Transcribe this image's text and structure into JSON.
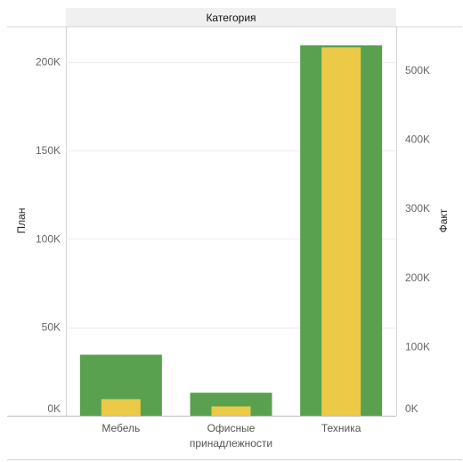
{
  "header": {
    "title": "Категория"
  },
  "chart_data": {
    "type": "bar",
    "categories": [
      "Мебель",
      "Офисные принадлежности",
      "Техника"
    ],
    "category_label_lines": [
      [
        "Мебель"
      ],
      [
        "Офисные",
        "принадлежности"
      ],
      [
        "Техника"
      ]
    ],
    "series": [
      {
        "name": "План",
        "axis": "left",
        "values": [
          34500,
          13000,
          209500
        ],
        "color": "#59A14F"
      },
      {
        "name": "Факт",
        "axis": "right",
        "values": [
          24000,
          13500,
          533000
        ],
        "color": "#EDC948"
      }
    ],
    "left_axis": {
      "label": "План",
      "ylim": [
        0,
        220000
      ],
      "ticks": [
        0,
        50000,
        100000,
        150000,
        200000
      ],
      "tick_labels": [
        "0K",
        "50K",
        "100K",
        "150K",
        "200K"
      ]
    },
    "right_axis": {
      "label": "Факт",
      "ylim": [
        0,
        563000
      ],
      "ticks": [
        0,
        100000,
        200000,
        300000,
        400000,
        500000
      ],
      "tick_labels": [
        "0K",
        "100K",
        "200K",
        "300K",
        "400K",
        "500K"
      ]
    },
    "grid": true,
    "legend": "none"
  }
}
